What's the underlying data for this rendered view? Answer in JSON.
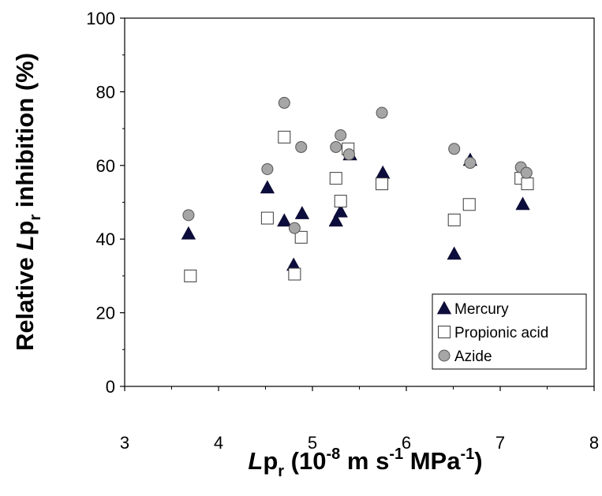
{
  "chart_data": {
    "type": "scatter",
    "title": "",
    "xlabel": {
      "pre": "L",
      "main": "p",
      "sub": "r",
      "post": " (10",
      "exp1": "-8",
      "mid1": " m s",
      "exp2": "-1",
      "mid2": " MPa",
      "exp3": "-1",
      "end": ")"
    },
    "ylabel": {
      "pre": "Relative ",
      "italic": "L",
      "main": "p",
      "sub": "r",
      "post": " inhibition (%)"
    },
    "xlim": [
      3,
      8
    ],
    "ylim": [
      0,
      100
    ],
    "x_ticks": [
      "3",
      "4",
      "5",
      "6",
      "7",
      "8"
    ],
    "y_ticks": [
      "0",
      "20",
      "40",
      "60",
      "80",
      "100"
    ],
    "grid": false,
    "legend_position": "bottom-right",
    "series": [
      {
        "name": "Mercury",
        "marker": "triangle",
        "color": "#0d0d3d",
        "points": [
          [
            3.68,
            41.5
          ],
          [
            4.52,
            54.0
          ],
          [
            4.7,
            45.0
          ],
          [
            4.8,
            33.0
          ],
          [
            4.89,
            47.0
          ],
          [
            5.25,
            45.0
          ],
          [
            5.3,
            47.5
          ],
          [
            5.4,
            63.0
          ],
          [
            5.75,
            58.0
          ],
          [
            6.51,
            36.0
          ],
          [
            6.68,
            61.5
          ],
          [
            7.24,
            49.5
          ]
        ]
      },
      {
        "name": "Propionic acid",
        "marker": "square",
        "color": "#ffffff",
        "points": [
          [
            3.7,
            30.0
          ],
          [
            4.52,
            45.7
          ],
          [
            4.7,
            67.7
          ],
          [
            4.81,
            30.5
          ],
          [
            4.88,
            40.5
          ],
          [
            5.25,
            56.5
          ],
          [
            5.3,
            50.3
          ],
          [
            5.38,
            64.5
          ],
          [
            5.74,
            55.0
          ],
          [
            6.51,
            45.2
          ],
          [
            6.67,
            49.4
          ],
          [
            7.22,
            56.5
          ],
          [
            7.29,
            55.0
          ]
        ]
      },
      {
        "name": "Azide",
        "marker": "circle",
        "color": "#a6a6a6",
        "points": [
          [
            3.68,
            46.5
          ],
          [
            4.52,
            59.0
          ],
          [
            4.7,
            77.0
          ],
          [
            4.81,
            43.0
          ],
          [
            4.88,
            65.0
          ],
          [
            5.25,
            65.0
          ],
          [
            5.3,
            68.2
          ],
          [
            5.39,
            63.0
          ],
          [
            5.74,
            74.3
          ],
          [
            6.51,
            64.5
          ],
          [
            6.68,
            60.7
          ],
          [
            7.22,
            59.5
          ],
          [
            7.28,
            58.0
          ]
        ]
      }
    ]
  }
}
